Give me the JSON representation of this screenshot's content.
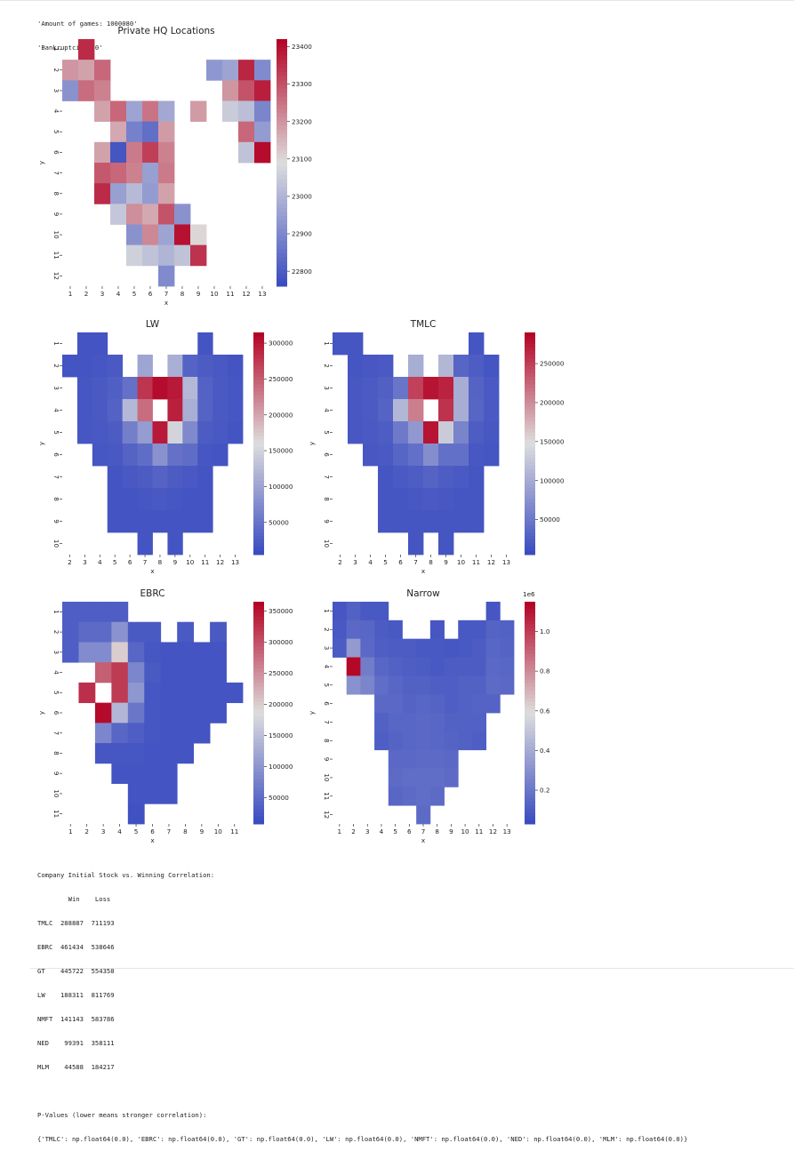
{
  "output_top": {
    "line1": "'Amount of games: 1000080'",
    "line2": "'Bankruptcies: 0'"
  },
  "output_bottom": {
    "corr_title": "Company Initial Stock vs. Winning Correlation:",
    "corr_header": "        Win    Loss",
    "corr_rows": [
      "TMLC  288887  711193",
      "EBRC  461434  538646",
      "GT    445722  554358",
      "LW    188311  811769",
      "NMFT  141143  583786",
      "NED    99391  358111",
      "MLM    44588  184217"
    ],
    "pvalues_title": "P-Values (lower means stronger correlation):",
    "pvalues_line": "{'TMLC': np.float64(0.0), 'EBRC': np.float64(0.0), 'GT': np.float64(0.0), 'LW': np.float64(0.0), 'NMFT': np.float64(0.0), 'NED': np.float64(0.0), 'MLM': np.float64(0.0)}"
  },
  "colors": {
    "cmap": "coolwarm",
    "low": "#3b4cc0",
    "mid": "#dddddd",
    "high": "#b40426"
  },
  "chart_data": [
    {
      "type": "heatmap",
      "title": "Private HQ Locations",
      "xlabel": "x",
      "ylabel": "y",
      "x": [
        1,
        2,
        3,
        4,
        5,
        6,
        7,
        8,
        9,
        10,
        11,
        12,
        13
      ],
      "y": [
        1,
        2,
        3,
        4,
        5,
        6,
        7,
        8,
        9,
        10,
        11,
        12
      ],
      "vmin": 22760,
      "vmax": 23420,
      "colorbar_ticks": [
        22800,
        22900,
        23000,
        23100,
        23200,
        23300,
        23400
      ],
      "colorbar_exponent": "",
      "values": [
        [
          null,
          23360,
          null,
          null,
          null,
          null,
          null,
          null,
          null,
          null,
          null,
          null,
          null
        ],
        [
          23200,
          23180,
          23270,
          null,
          null,
          null,
          null,
          null,
          null,
          22930,
          22960,
          23370,
          22900
        ],
        [
          22920,
          23260,
          23230,
          null,
          null,
          null,
          null,
          null,
          null,
          null,
          23200,
          23300,
          23380
        ],
        [
          null,
          null,
          23180,
          23270,
          22960,
          23250,
          22970,
          null,
          23190,
          null,
          23050,
          23020,
          22890
        ],
        [
          null,
          null,
          null,
          23170,
          22880,
          22840,
          23190,
          null,
          null,
          null,
          null,
          23270,
          22940
        ],
        [
          null,
          null,
          23180,
          22780,
          23240,
          23330,
          23230,
          null,
          null,
          null,
          null,
          23030,
          23410
        ],
        [
          null,
          null,
          23290,
          23270,
          23230,
          22950,
          23240,
          null,
          null,
          null,
          null,
          null,
          null
        ],
        [
          null,
          null,
          23360,
          22950,
          23010,
          22940,
          23180,
          null,
          null,
          null,
          null,
          null,
          null
        ],
        [
          null,
          null,
          null,
          23040,
          23210,
          23170,
          23300,
          22920,
          null,
          null,
          null,
          null,
          null
        ],
        [
          null,
          null,
          null,
          null,
          22920,
          23220,
          22960,
          23400,
          23100,
          null,
          null,
          null,
          null
        ],
        [
          null,
          null,
          null,
          null,
          23060,
          23030,
          23000,
          23030,
          23350,
          null,
          null,
          null,
          null
        ],
        [
          null,
          null,
          null,
          null,
          null,
          null,
          22900,
          null,
          null,
          null,
          null,
          null,
          null
        ]
      ]
    },
    {
      "type": "heatmap",
      "title": "LW",
      "xlabel": "x",
      "ylabel": "y",
      "x": [
        2,
        3,
        4,
        5,
        6,
        7,
        8,
        9,
        10,
        11,
        12,
        13
      ],
      "y": [
        1,
        2,
        3,
        4,
        5,
        6,
        7,
        8,
        9,
        10
      ],
      "vmin": 5000,
      "vmax": 315000,
      "colorbar_ticks": [
        50000,
        100000,
        150000,
        200000,
        250000,
        300000
      ],
      "colorbar_exponent": "",
      "values": [
        [
          null,
          14000,
          14000,
          null,
          null,
          null,
          null,
          null,
          null,
          14000,
          null,
          null
        ],
        [
          14000,
          14000,
          16000,
          20000,
          null,
          100000,
          null,
          110000,
          30000,
          22000,
          18000,
          14000
        ],
        [
          null,
          16000,
          20000,
          25000,
          45000,
          280000,
          310000,
          300000,
          120000,
          28000,
          20000,
          16000
        ],
        [
          null,
          16000,
          20000,
          28000,
          120000,
          240000,
          null,
          295000,
          110000,
          30000,
          20000,
          16000
        ],
        [
          null,
          16000,
          18000,
          22000,
          60000,
          90000,
          300000,
          150000,
          70000,
          22000,
          18000,
          14000
        ],
        [
          null,
          null,
          16000,
          18000,
          30000,
          40000,
          80000,
          45000,
          40000,
          16000,
          14000,
          null
        ],
        [
          null,
          null,
          null,
          14000,
          18000,
          22000,
          30000,
          22000,
          18000,
          14000,
          null,
          null
        ],
        [
          null,
          null,
          null,
          14000,
          14000,
          16000,
          18000,
          16000,
          14000,
          14000,
          null,
          null
        ],
        [
          null,
          null,
          null,
          14000,
          14000,
          14000,
          14000,
          14000,
          14000,
          14000,
          null,
          null
        ],
        [
          null,
          null,
          null,
          null,
          null,
          14000,
          null,
          14000,
          null,
          null,
          null,
          null
        ]
      ]
    },
    {
      "type": "heatmap",
      "title": "TMLC",
      "xlabel": "x",
      "ylabel": "y",
      "x": [
        2,
        3,
        4,
        5,
        6,
        7,
        8,
        9,
        10,
        11,
        12,
        13
      ],
      "y": [
        1,
        2,
        3,
        4,
        5,
        6,
        7,
        8,
        9,
        10
      ],
      "vmin": 5000,
      "vmax": 290000,
      "colorbar_ticks": [
        50000,
        100000,
        150000,
        200000,
        250000
      ],
      "colorbar_exponent": "",
      "values": [
        [
          14000,
          14000,
          null,
          null,
          null,
          null,
          null,
          null,
          null,
          14000,
          null,
          null
        ],
        [
          null,
          14000,
          16000,
          18000,
          null,
          100000,
          null,
          110000,
          30000,
          22000,
          14000,
          null
        ],
        [
          null,
          16000,
          20000,
          25000,
          45000,
          250000,
          280000,
          270000,
          100000,
          28000,
          18000,
          null
        ],
        [
          null,
          16000,
          20000,
          28000,
          110000,
          210000,
          null,
          260000,
          100000,
          30000,
          18000,
          null
        ],
        [
          null,
          16000,
          18000,
          22000,
          50000,
          80000,
          280000,
          130000,
          60000,
          22000,
          16000,
          null
        ],
        [
          null,
          null,
          16000,
          18000,
          30000,
          40000,
          70000,
          40000,
          40000,
          16000,
          14000,
          null
        ],
        [
          null,
          null,
          null,
          14000,
          18000,
          22000,
          28000,
          22000,
          18000,
          14000,
          null,
          null
        ],
        [
          null,
          null,
          null,
          14000,
          14000,
          16000,
          18000,
          16000,
          14000,
          14000,
          null,
          null
        ],
        [
          null,
          null,
          null,
          14000,
          14000,
          14000,
          14000,
          14000,
          14000,
          14000,
          null,
          null
        ],
        [
          null,
          null,
          null,
          null,
          null,
          14000,
          null,
          14000,
          null,
          null,
          null,
          null
        ]
      ]
    },
    {
      "type": "heatmap",
      "title": "EBRC",
      "xlabel": "x",
      "ylabel": "y",
      "x": [
        1,
        2,
        3,
        4,
        5,
        6,
        7,
        8,
        9,
        10,
        11
      ],
      "y": [
        1,
        2,
        3,
        4,
        5,
        6,
        7,
        8,
        9,
        10,
        11
      ],
      "vmin": 8000,
      "vmax": 365000,
      "colorbar_ticks": [
        50000,
        100000,
        150000,
        200000,
        250000,
        300000,
        350000
      ],
      "colorbar_exponent": "",
      "values": [
        [
          30000,
          30000,
          30000,
          30000,
          null,
          null,
          null,
          null,
          null,
          null,
          null
        ],
        [
          30000,
          45000,
          45000,
          95000,
          25000,
          25000,
          null,
          25000,
          null,
          25000,
          null
        ],
        [
          30000,
          85000,
          85000,
          200000,
          40000,
          20000,
          18000,
          18000,
          18000,
          18000,
          null
        ],
        [
          null,
          null,
          290000,
          320000,
          80000,
          25000,
          18000,
          18000,
          18000,
          18000,
          null
        ],
        [
          null,
          330000,
          null,
          320000,
          100000,
          20000,
          18000,
          18000,
          18000,
          18000,
          18000
        ],
        [
          null,
          null,
          360000,
          140000,
          60000,
          20000,
          18000,
          18000,
          18000,
          18000,
          null
        ],
        [
          null,
          null,
          80000,
          40000,
          30000,
          20000,
          18000,
          18000,
          18000,
          null,
          null
        ],
        [
          null,
          null,
          20000,
          20000,
          20000,
          18000,
          18000,
          18000,
          null,
          null,
          null
        ],
        [
          null,
          null,
          null,
          18000,
          18000,
          18000,
          18000,
          null,
          null,
          null,
          null
        ],
        [
          null,
          null,
          null,
          null,
          18000,
          18000,
          18000,
          null,
          null,
          null,
          null
        ],
        [
          null,
          null,
          null,
          null,
          14000,
          null,
          null,
          null,
          null,
          null,
          null
        ]
      ]
    },
    {
      "type": "heatmap",
      "title": "Narrow",
      "xlabel": "x",
      "ylabel": "y",
      "x": [
        1,
        2,
        3,
        4,
        5,
        6,
        7,
        8,
        9,
        10,
        11,
        12,
        13
      ],
      "y": [
        1,
        2,
        3,
        4,
        5,
        6,
        7,
        8,
        9,
        10,
        11,
        12
      ],
      "vmin": 30000,
      "vmax": 1150000,
      "colorbar_ticks": [
        0.2,
        0.4,
        0.6,
        0.8,
        1.0
      ],
      "colorbar_exponent": "1e6",
      "values": [
        [
          70000,
          110000,
          80000,
          80000,
          null,
          null,
          null,
          null,
          null,
          null,
          null,
          70000,
          null
        ],
        [
          80000,
          140000,
          130000,
          90000,
          80000,
          null,
          null,
          70000,
          null,
          80000,
          80000,
          120000,
          110000
        ],
        [
          90000,
          330000,
          140000,
          100000,
          90000,
          90000,
          80000,
          80000,
          70000,
          80000,
          90000,
          130000,
          120000
        ],
        [
          null,
          1140000,
          220000,
          130000,
          110000,
          100000,
          90000,
          80000,
          90000,
          90000,
          90000,
          140000,
          130000
        ],
        [
          null,
          300000,
          250000,
          160000,
          130000,
          110000,
          110000,
          100000,
          100000,
          110000,
          110000,
          150000,
          140000
        ],
        [
          null,
          null,
          null,
          140000,
          140000,
          120000,
          130000,
          120000,
          100000,
          110000,
          120000,
          120000,
          null
        ],
        [
          null,
          null,
          null,
          110000,
          130000,
          130000,
          140000,
          130000,
          110000,
          110000,
          110000,
          null,
          null
        ],
        [
          null,
          null,
          null,
          100000,
          120000,
          130000,
          140000,
          130000,
          120000,
          110000,
          100000,
          null,
          null
        ],
        [
          null,
          null,
          null,
          null,
          140000,
          140000,
          150000,
          150000,
          140000,
          null,
          null,
          null,
          null
        ],
        [
          null,
          null,
          null,
          null,
          150000,
          160000,
          160000,
          160000,
          150000,
          null,
          null,
          null,
          null
        ],
        [
          null,
          null,
          null,
          null,
          130000,
          150000,
          160000,
          150000,
          null,
          null,
          null,
          null,
          null
        ],
        [
          null,
          null,
          null,
          null,
          null,
          null,
          150000,
          null,
          null,
          null,
          null,
          null,
          null
        ]
      ]
    }
  ]
}
